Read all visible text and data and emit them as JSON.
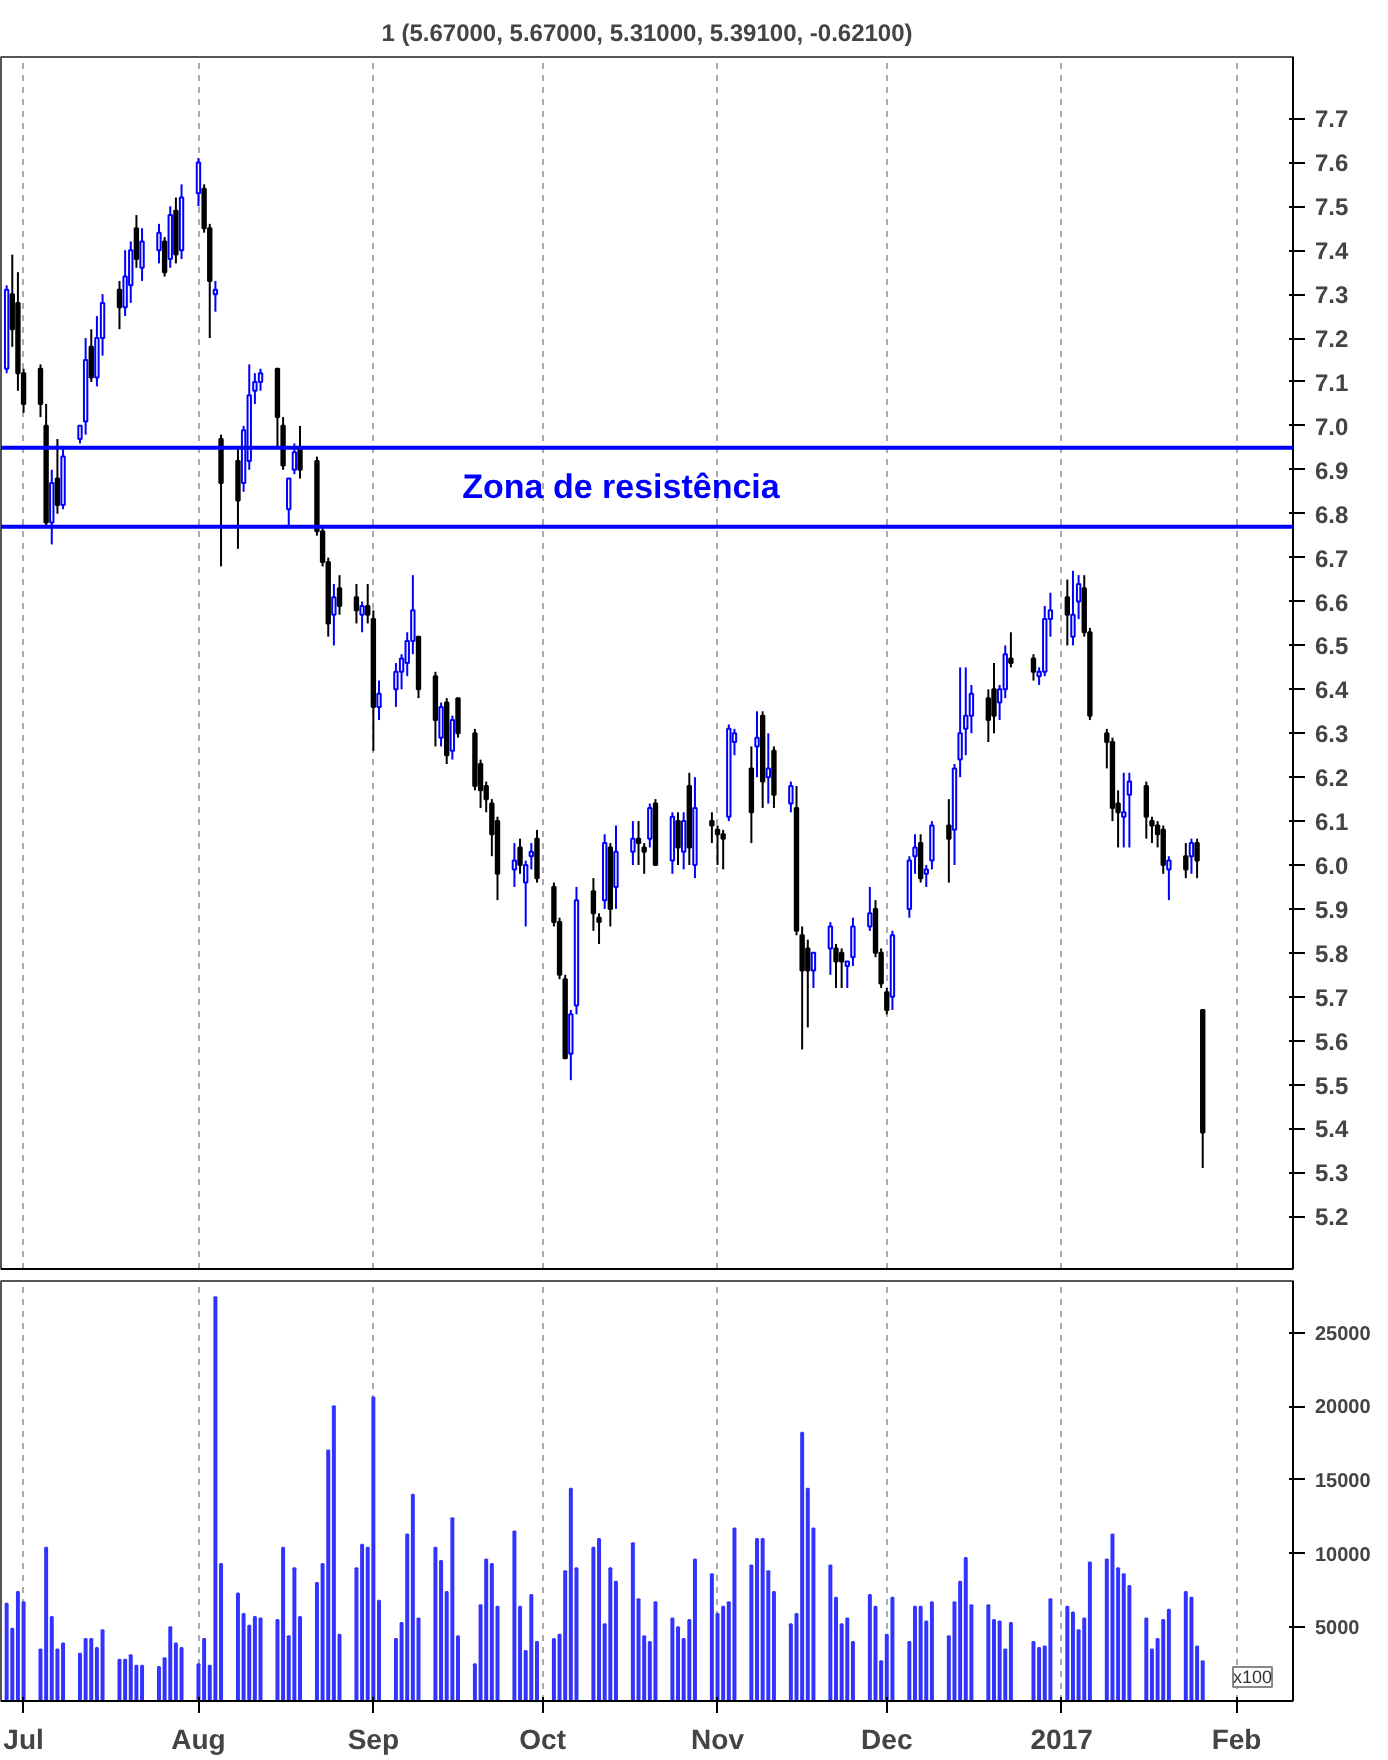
{
  "chart_data": [
    {
      "type": "candlestick",
      "title": "1 (5.67000, 5.67000, 5.31000, 5.39100, -0.62100)",
      "colors": [
        "#0000ff",
        "#000000",
        "#000000",
        "#000000",
        "#000000",
        "#000000",
        "#0000ff",
        "#000000",
        "#0000ff",
        "#0000ff",
        "#0000ff",
        "#000000",
        "#0000ff",
        "#0000ff",
        "#000000",
        "#0000ff",
        "#0000ff",
        "#000000",
        "#0000ff",
        "#0000ff",
        "#000000",
        "#0000ff",
        "#000000",
        "#0000ff",
        "#0000ff",
        "#000000",
        "#000000",
        "#0000ff",
        "#000000",
        "#000000",
        "#0000ff",
        "#0000ff",
        "#0000ff",
        "#0000ff",
        "#000000",
        "#000000",
        "#0000ff",
        "#0000ff",
        "#000000",
        "#000000",
        "#000000",
        "#000000",
        "#0000ff",
        "#000000",
        "#000000",
        "#0000ff",
        "#000000",
        "#000000",
        "#0000ff",
        "#0000ff",
        "#0000ff",
        "#0000ff",
        "#0000ff",
        "#000000",
        "#000000",
        "#0000ff",
        "#000000",
        "#0000ff",
        "#000000",
        "#000000",
        "#000000",
        "#000000",
        "#000000",
        "#000000",
        "#0000ff",
        "#000000",
        "#0000ff",
        "#0000ff",
        "#000000",
        "#000000",
        "#000000",
        "#000000",
        "#0000ff",
        "#0000ff",
        "#000000",
        "#000000",
        "#0000ff",
        "#000000",
        "#0000ff",
        "#0000ff",
        "#000000",
        "#000000",
        "#0000ff",
        "#000000",
        "#0000ff",
        "#000000",
        "#0000ff",
        "#000000",
        "#0000ff",
        "#000000",
        "#000000",
        "#000000",
        "#0000ff",
        "#0000ff",
        "#000000",
        "#0000ff",
        "#000000",
        "#0000ff",
        "#000000",
        "#0000ff",
        "#000000",
        "#000000",
        "#000000",
        "#0000ff",
        "#0000ff",
        "#000000",
        "#000000",
        "#0000ff",
        "#0000ff",
        "#0000ff",
        "#000000",
        "#000000",
        "#000000",
        "#0000ff",
        "#0000ff",
        "#0000ff",
        "#000000",
        "#0000ff",
        "#0000ff",
        "#000000",
        "#0000ff",
        "#0000ff",
        "#0000ff",
        "#0000ff",
        "#000000",
        "#000000",
        "#0000ff",
        "#0000ff",
        "#000000",
        "#000000",
        "#0000ff",
        "#0000ff",
        "#0000ff",
        "#000000",
        "#0000ff",
        "#0000ff",
        "#000000",
        "#000000",
        "#000000",
        "#000000",
        "#000000",
        "#0000ff",
        "#0000ff",
        "#000000",
        "#000000",
        "#000000",
        "#000000",
        "#0000ff",
        "#000000",
        "#0000ff",
        "#000000",
        "#000000"
      ],
      "x": [
        "2016-06-28",
        "2016-06-29",
        "2016-06-30",
        "2016-07-01",
        "2016-07-04",
        "2016-07-05",
        "2016-07-06",
        "2016-07-07",
        "2016-07-08",
        "2016-07-11",
        "2016-07-12",
        "2016-07-13",
        "2016-07-14",
        "2016-07-15",
        "2016-07-18",
        "2016-07-19",
        "2016-07-20",
        "2016-07-21",
        "2016-07-22",
        "2016-07-25",
        "2016-07-26",
        "2016-07-27",
        "2016-07-28",
        "2016-07-29",
        "2016-08-01",
        "2016-08-02",
        "2016-08-03",
        "2016-08-04",
        "2016-08-05",
        "2016-08-08",
        "2016-08-09",
        "2016-08-10",
        "2016-08-11",
        "2016-08-12",
        "2016-08-15",
        "2016-08-16",
        "2016-08-17",
        "2016-08-18",
        "2016-08-19",
        "2016-08-22",
        "2016-08-23",
        "2016-08-24",
        "2016-08-25",
        "2016-08-26",
        "2016-08-29",
        "2016-08-30",
        "2016-08-31",
        "2016-09-01",
        "2016-09-02",
        "2016-09-05",
        "2016-09-06",
        "2016-09-07",
        "2016-09-08",
        "2016-09-09",
        "2016-09-12",
        "2016-09-13",
        "2016-09-14",
        "2016-09-15",
        "2016-09-16",
        "2016-09-19",
        "2016-09-20",
        "2016-09-21",
        "2016-09-22",
        "2016-09-23",
        "2016-09-26",
        "2016-09-27",
        "2016-09-28",
        "2016-09-29",
        "2016-09-30",
        "2016-10-03",
        "2016-10-04",
        "2016-10-05",
        "2016-10-06",
        "2016-10-07",
        "2016-10-10",
        "2016-10-11",
        "2016-10-12",
        "2016-10-13",
        "2016-10-14",
        "2016-10-17",
        "2016-10-18",
        "2016-10-19",
        "2016-10-20",
        "2016-10-21",
        "2016-10-24",
        "2016-10-25",
        "2016-10-26",
        "2016-10-27",
        "2016-10-28",
        "2016-10-31",
        "2016-11-01",
        "2016-11-02",
        "2016-11-03",
        "2016-11-04",
        "2016-11-07",
        "2016-11-08",
        "2016-11-09",
        "2016-11-10",
        "2016-11-11",
        "2016-11-14",
        "2016-11-15",
        "2016-11-16",
        "2016-11-17",
        "2016-11-18",
        "2016-11-21",
        "2016-11-22",
        "2016-11-23",
        "2016-11-24",
        "2016-11-25",
        "2016-11-28",
        "2016-11-29",
        "2016-11-30",
        "2016-12-01",
        "2016-12-02",
        "2016-12-05",
        "2016-12-06",
        "2016-12-07",
        "2016-12-08",
        "2016-12-09",
        "2016-12-12",
        "2016-12-13",
        "2016-12-14",
        "2016-12-15",
        "2016-12-16",
        "2016-12-19",
        "2016-12-20",
        "2016-12-21",
        "2016-12-22",
        "2016-12-23",
        "2016-12-27",
        "2016-12-28",
        "2016-12-29",
        "2016-12-30",
        "2017-01-02",
        "2017-01-03",
        "2017-01-04",
        "2017-01-05",
        "2017-01-06",
        "2017-01-09",
        "2017-01-10",
        "2017-01-11",
        "2017-01-12",
        "2017-01-13",
        "2017-01-16",
        "2017-01-17",
        "2017-01-18",
        "2017-01-19",
        "2017-01-20",
        "2017-01-23",
        "2017-01-24",
        "2017-01-25",
        "2017-01-26"
      ],
      "ohlc": [
        [
          7.13,
          7.32,
          7.12,
          7.31
        ],
        [
          7.3,
          7.39,
          7.18,
          7.22
        ],
        [
          7.28,
          7.35,
          7.08,
          7.12
        ],
        [
          7.12,
          7.13,
          7.03,
          7.05
        ],
        [
          7.13,
          7.14,
          7.02,
          7.05
        ],
        [
          7.0,
          7.05,
          6.77,
          6.78
        ],
        [
          6.78,
          6.9,
          6.73,
          6.87
        ],
        [
          6.88,
          6.97,
          6.8,
          6.82
        ],
        [
          6.82,
          6.95,
          6.81,
          6.93
        ],
        [
          6.97,
          7.0,
          6.96,
          7.0
        ],
        [
          7.01,
          7.2,
          6.98,
          7.15
        ],
        [
          7.18,
          7.22,
          7.1,
          7.11
        ],
        [
          7.11,
          7.25,
          7.09,
          7.2
        ],
        [
          7.2,
          7.3,
          7.16,
          7.28
        ],
        [
          7.31,
          7.33,
          7.22,
          7.27
        ],
        [
          7.27,
          7.4,
          7.25,
          7.34
        ],
        [
          7.32,
          7.42,
          7.28,
          7.4
        ],
        [
          7.45,
          7.48,
          7.36,
          7.38
        ],
        [
          7.36,
          7.45,
          7.33,
          7.42
        ],
        [
          7.4,
          7.46,
          7.37,
          7.44
        ],
        [
          7.42,
          7.43,
          7.34,
          7.35
        ],
        [
          7.38,
          7.5,
          7.36,
          7.48
        ],
        [
          7.49,
          7.52,
          7.37,
          7.39
        ],
        [
          7.4,
          7.55,
          7.38,
          7.52
        ],
        [
          7.53,
          7.61,
          7.5,
          7.6
        ],
        [
          7.54,
          7.55,
          7.44,
          7.45
        ],
        [
          7.45,
          7.46,
          7.2,
          7.33
        ],
        [
          7.3,
          7.33,
          7.26,
          7.31
        ],
        [
          6.97,
          6.98,
          6.68,
          6.87
        ],
        [
          6.92,
          6.95,
          6.72,
          6.83
        ],
        [
          6.87,
          7.0,
          6.85,
          6.99
        ],
        [
          6.92,
          7.14,
          6.9,
          7.07
        ],
        [
          7.08,
          7.12,
          7.05,
          7.1
        ],
        [
          7.1,
          7.13,
          7.08,
          7.12
        ],
        [
          7.13,
          7.13,
          6.95,
          7.02
        ],
        [
          7.0,
          7.02,
          6.9,
          6.91
        ],
        [
          6.81,
          6.88,
          6.77,
          6.88
        ],
        [
          6.9,
          6.96,
          6.89,
          6.94
        ],
        [
          6.95,
          7.0,
          6.88,
          6.9
        ],
        [
          6.92,
          6.93,
          6.75,
          6.76
        ],
        [
          6.76,
          6.77,
          6.68,
          6.69
        ],
        [
          6.69,
          6.7,
          6.52,
          6.55
        ],
        [
          6.57,
          6.64,
          6.5,
          6.61
        ],
        [
          6.63,
          6.66,
          6.57,
          6.59
        ],
        [
          6.61,
          6.64,
          6.55,
          6.58
        ],
        [
          6.57,
          6.6,
          6.53,
          6.59
        ],
        [
          6.59,
          6.64,
          6.55,
          6.57
        ],
        [
          6.56,
          6.58,
          6.26,
          6.36
        ],
        [
          6.36,
          6.42,
          6.33,
          6.39
        ],
        [
          6.4,
          6.46,
          6.36,
          6.44
        ],
        [
          6.44,
          6.48,
          6.4,
          6.47
        ],
        [
          6.46,
          6.53,
          6.43,
          6.51
        ],
        [
          6.51,
          6.66,
          6.48,
          6.58
        ],
        [
          6.52,
          6.52,
          6.38,
          6.4
        ],
        [
          6.43,
          6.44,
          6.27,
          6.33
        ],
        [
          6.29,
          6.37,
          6.27,
          6.36
        ],
        [
          6.37,
          6.38,
          6.23,
          6.25
        ],
        [
          6.26,
          6.34,
          6.24,
          6.33
        ],
        [
          6.38,
          6.38,
          6.29,
          6.3
        ],
        [
          6.3,
          6.31,
          6.17,
          6.18
        ],
        [
          6.23,
          6.24,
          6.13,
          6.17
        ],
        [
          6.18,
          6.19,
          6.12,
          6.15
        ],
        [
          6.14,
          6.15,
          6.02,
          6.07
        ],
        [
          6.1,
          6.11,
          5.92,
          5.98
        ],
        [
          5.99,
          6.05,
          5.95,
          6.01
        ],
        [
          6.04,
          6.06,
          5.98,
          6.0
        ],
        [
          5.96,
          6.01,
          5.86,
          6.0
        ],
        [
          6.02,
          6.05,
          5.99,
          6.03
        ],
        [
          6.06,
          6.08,
          5.96,
          5.97
        ],
        [
          5.95,
          5.96,
          5.86,
          5.87
        ],
        [
          5.87,
          5.88,
          5.74,
          5.75
        ],
        [
          5.74,
          5.75,
          5.56,
          5.56
        ],
        [
          5.57,
          5.67,
          5.51,
          5.66
        ],
        [
          5.68,
          5.95,
          5.66,
          5.92
        ],
        [
          5.94,
          5.97,
          5.85,
          5.89
        ],
        [
          5.88,
          5.89,
          5.82,
          5.87
        ],
        [
          5.92,
          6.07,
          5.9,
          6.05
        ],
        [
          6.04,
          6.05,
          5.86,
          5.9
        ],
        [
          5.95,
          6.09,
          5.9,
          6.03
        ],
        [
          6.03,
          6.1,
          6.0,
          6.06
        ],
        [
          6.06,
          6.1,
          6.0,
          6.05
        ],
        [
          6.04,
          6.05,
          5.98,
          6.03
        ],
        [
          6.06,
          6.14,
          6.04,
          6.13
        ],
        [
          6.14,
          6.15,
          6.0,
          6.0
        ],
        [
          6.01,
          6.12,
          5.98,
          6.11
        ],
        [
          6.1,
          6.12,
          6.0,
          6.04
        ],
        [
          6.03,
          6.12,
          5.99,
          6.1
        ],
        [
          6.18,
          6.21,
          6.0,
          6.04
        ],
        [
          6.0,
          6.2,
          5.97,
          6.13
        ],
        [
          6.1,
          6.12,
          6.05,
          6.09
        ],
        [
          6.08,
          6.09,
          6.0,
          6.07
        ],
        [
          6.07,
          6.08,
          5.99,
          6.06
        ],
        [
          6.11,
          6.32,
          6.1,
          6.31
        ],
        [
          6.28,
          6.31,
          6.25,
          6.3
        ],
        [
          6.22,
          6.27,
          6.05,
          6.12
        ],
        [
          6.27,
          6.35,
          6.2,
          6.29
        ],
        [
          6.34,
          6.35,
          6.13,
          6.19
        ],
        [
          6.2,
          6.3,
          6.14,
          6.22
        ],
        [
          6.26,
          6.27,
          6.13,
          6.16
        ],
        [
          6.14,
          6.19,
          6.12,
          6.18
        ],
        [
          6.13,
          6.18,
          5.84,
          5.85
        ],
        [
          5.84,
          5.86,
          5.58,
          5.76
        ],
        [
          5.81,
          5.83,
          5.63,
          5.76
        ],
        [
          5.76,
          5.8,
          5.72,
          5.8
        ],
        [
          5.81,
          5.87,
          5.75,
          5.86
        ],
        [
          5.81,
          5.82,
          5.72,
          5.78
        ],
        [
          5.8,
          5.81,
          5.72,
          5.78
        ],
        [
          5.77,
          5.78,
          5.72,
          5.78
        ],
        [
          5.79,
          5.88,
          5.77,
          5.86
        ],
        [
          5.86,
          5.95,
          5.85,
          5.89
        ],
        [
          5.9,
          5.92,
          5.79,
          5.8
        ],
        [
          5.8,
          5.81,
          5.72,
          5.73
        ],
        [
          5.71,
          5.72,
          5.66,
          5.67
        ],
        [
          5.7,
          5.85,
          5.67,
          5.84
        ],
        [
          5.9,
          6.02,
          5.88,
          6.01
        ],
        [
          6.02,
          6.07,
          5.98,
          6.04
        ],
        [
          6.05,
          6.07,
          5.96,
          5.97
        ],
        [
          5.98,
          6.0,
          5.95,
          5.99
        ],
        [
          6.01,
          6.1,
          5.99,
          6.09
        ],
        [
          6.09,
          6.15,
          5.96,
          6.06
        ],
        [
          6.08,
          6.23,
          6.0,
          6.22
        ],
        [
          6.24,
          6.45,
          6.2,
          6.3
        ],
        [
          6.31,
          6.45,
          6.25,
          6.34
        ],
        [
          6.34,
          6.41,
          6.3,
          6.39
        ],
        [
          6.38,
          6.4,
          6.28,
          6.33
        ],
        [
          6.4,
          6.46,
          6.3,
          6.34
        ],
        [
          6.37,
          6.41,
          6.33,
          6.4
        ],
        [
          6.4,
          6.5,
          6.38,
          6.48
        ],
        [
          6.47,
          6.53,
          6.45,
          6.46
        ],
        [
          6.47,
          6.48,
          6.42,
          6.44
        ],
        [
          6.43,
          6.45,
          6.41,
          6.44
        ],
        [
          6.44,
          6.59,
          6.43,
          6.56
        ],
        [
          6.56,
          6.62,
          6.52,
          6.58
        ],
        [
          6.61,
          6.65,
          6.5,
          6.57
        ],
        [
          6.52,
          6.67,
          6.5,
          6.57
        ],
        [
          6.6,
          6.66,
          6.56,
          6.64
        ],
        [
          6.63,
          6.66,
          6.52,
          6.53
        ],
        [
          6.53,
          6.54,
          6.33,
          6.34
        ],
        [
          6.3,
          6.31,
          6.22,
          6.28
        ],
        [
          6.28,
          6.29,
          6.1,
          6.13
        ],
        [
          6.14,
          6.17,
          6.04,
          6.12
        ],
        [
          6.11,
          6.21,
          6.04,
          6.12
        ],
        [
          6.16,
          6.21,
          6.04,
          6.19
        ],
        [
          6.18,
          6.19,
          6.06,
          6.11
        ],
        [
          6.1,
          6.11,
          6.05,
          6.09
        ],
        [
          6.09,
          6.1,
          6.04,
          6.07
        ],
        [
          6.08,
          6.09,
          5.98,
          6.0
        ],
        [
          5.99,
          6.02,
          5.92,
          6.01
        ],
        [
          6.02,
          6.05,
          5.97,
          5.99
        ],
        [
          6.02,
          6.06,
          5.98,
          6.05
        ],
        [
          6.05,
          6.06,
          5.97,
          6.01
        ],
        [
          5.67,
          5.67,
          5.31,
          5.391
        ]
      ],
      "xlim": [
        "2016-06-27",
        "2017-02-11"
      ],
      "xticks": [
        {
          "value": "2016-07-01",
          "label": null
        },
        {
          "value": "2016-08-01",
          "label": null
        },
        {
          "value": "2016-09-01",
          "label": null
        },
        {
          "value": "2016-10-01",
          "label": null
        },
        {
          "value": "2016-11-01",
          "label": null
        },
        {
          "value": "2016-12-01",
          "label": null
        },
        {
          "value": "2017-01-01",
          "label": null
        },
        {
          "value": "2017-02-01",
          "label": null
        }
      ],
      "ylim": [
        5.08,
        7.84
      ],
      "yticks": [
        5.2,
        5.3,
        5.4,
        5.5,
        5.6,
        5.7,
        5.8,
        5.9,
        {
          "value": 6,
          "label": "6.0"
        },
        6.1,
        6.2,
        6.3,
        6.4,
        6.5,
        6.6,
        6.7,
        6.8,
        6.9,
        {
          "value": 7,
          "label": "7.0"
        },
        7.1,
        7.2,
        7.3,
        7.4,
        7.5,
        7.6,
        7.7
      ],
      "tick_labels": "y",
      "grid": "x",
      "ref_lines": [
        {
          "axis": "y",
          "value": 6.95,
          "color": "#0000ff"
        },
        {
          "axis": "y",
          "value": 6.77,
          "color": "#0000ff"
        }
      ],
      "annotations": [
        "Zona de resistência"
      ]
    },
    {
      "type": "bar",
      "color": "#3333ff",
      "x": [
        "2016-06-28",
        "2016-06-29",
        "2016-06-30",
        "2016-07-01",
        "2016-07-04",
        "2016-07-05",
        "2016-07-06",
        "2016-07-07",
        "2016-07-08",
        "2016-07-11",
        "2016-07-12",
        "2016-07-13",
        "2016-07-14",
        "2016-07-15",
        "2016-07-18",
        "2016-07-19",
        "2016-07-20",
        "2016-07-21",
        "2016-07-22",
        "2016-07-25",
        "2016-07-26",
        "2016-07-27",
        "2016-07-28",
        "2016-07-29",
        "2016-08-01",
        "2016-08-02",
        "2016-08-03",
        "2016-08-04",
        "2016-08-05",
        "2016-08-08",
        "2016-08-09",
        "2016-08-10",
        "2016-08-11",
        "2016-08-12",
        "2016-08-15",
        "2016-08-16",
        "2016-08-17",
        "2016-08-18",
        "2016-08-19",
        "2016-08-22",
        "2016-08-23",
        "2016-08-24",
        "2016-08-25",
        "2016-08-26",
        "2016-08-29",
        "2016-08-30",
        "2016-08-31",
        "2016-09-01",
        "2016-09-02",
        "2016-09-05",
        "2016-09-06",
        "2016-09-07",
        "2016-09-08",
        "2016-09-09",
        "2016-09-12",
        "2016-09-13",
        "2016-09-14",
        "2016-09-15",
        "2016-09-16",
        "2016-09-19",
        "2016-09-20",
        "2016-09-21",
        "2016-09-22",
        "2016-09-23",
        "2016-09-26",
        "2016-09-27",
        "2016-09-28",
        "2016-09-29",
        "2016-09-30",
        "2016-10-03",
        "2016-10-04",
        "2016-10-05",
        "2016-10-06",
        "2016-10-07",
        "2016-10-10",
        "2016-10-11",
        "2016-10-12",
        "2016-10-13",
        "2016-10-14",
        "2016-10-17",
        "2016-10-18",
        "2016-10-19",
        "2016-10-20",
        "2016-10-21",
        "2016-10-24",
        "2016-10-25",
        "2016-10-26",
        "2016-10-27",
        "2016-10-28",
        "2016-10-31",
        "2016-11-01",
        "2016-11-02",
        "2016-11-03",
        "2016-11-04",
        "2016-11-07",
        "2016-11-08",
        "2016-11-09",
        "2016-11-10",
        "2016-11-11",
        "2016-11-14",
        "2016-11-15",
        "2016-11-16",
        "2016-11-17",
        "2016-11-18",
        "2016-11-21",
        "2016-11-22",
        "2016-11-23",
        "2016-11-24",
        "2016-11-25",
        "2016-11-28",
        "2016-11-29",
        "2016-11-30",
        "2016-12-01",
        "2016-12-02",
        "2016-12-05",
        "2016-12-06",
        "2016-12-07",
        "2016-12-08",
        "2016-12-09",
        "2016-12-12",
        "2016-12-13",
        "2016-12-14",
        "2016-12-15",
        "2016-12-16",
        "2016-12-19",
        "2016-12-20",
        "2016-12-21",
        "2016-12-22",
        "2016-12-23",
        "2016-12-27",
        "2016-12-28",
        "2016-12-29",
        "2016-12-30",
        "2017-01-02",
        "2017-01-03",
        "2017-01-04",
        "2017-01-05",
        "2017-01-06",
        "2017-01-09",
        "2017-01-10",
        "2017-01-11",
        "2017-01-12",
        "2017-01-13",
        "2017-01-16",
        "2017-01-17",
        "2017-01-18",
        "2017-01-19",
        "2017-01-20",
        "2017-01-23",
        "2017-01-24",
        "2017-01-25",
        "2017-01-26"
      ],
      "values": [
        6600,
        4900,
        7400,
        6700,
        3500,
        10400,
        5700,
        3500,
        3900,
        3200,
        4200,
        4200,
        3600,
        4800,
        2800,
        2800,
        3100,
        2400,
        2400,
        2300,
        2900,
        5000,
        3900,
        3600,
        2500,
        4200,
        2400,
        27400,
        9300,
        7300,
        5900,
        5100,
        5700,
        5600,
        5500,
        10400,
        4400,
        9000,
        5700,
        8000,
        9300,
        17000,
        20000,
        4500,
        9000,
        10600,
        10400,
        20600,
        6800,
        4200,
        5300,
        11300,
        14000,
        5600,
        10400,
        9500,
        7400,
        12400,
        4400,
        2500,
        6500,
        9600,
        9300,
        6400,
        11500,
        6400,
        3400,
        7200,
        4000,
        4200,
        4500,
        8800,
        14400,
        9000,
        10400,
        11000,
        5200,
        9000,
        8100,
        10700,
        6900,
        4400,
        4000,
        6700,
        5600,
        5000,
        4200,
        5500,
        9600,
        8600,
        5900,
        6400,
        6700,
        11700,
        9200,
        11000,
        11000,
        8800,
        7400,
        5200,
        5900,
        18200,
        14400,
        11700,
        9200,
        7000,
        5200,
        5600,
        4000,
        7200,
        6400,
        2700,
        4500,
        7000,
        4000,
        6400,
        6400,
        5400,
        6700,
        4400,
        6700,
        8100,
        9700,
        6500,
        6500,
        5500,
        5400,
        3500,
        5300,
        4000,
        3600,
        3700,
        6900,
        6400,
        6000,
        4800,
        5600,
        9400,
        9600,
        11300,
        9000,
        8600,
        7800,
        5600,
        3500,
        4200,
        5500,
        6200,
        7400,
        7000,
        3700,
        2700
      ],
      "xlim": [
        "2016-06-27",
        "2017-02-11"
      ],
      "xticks": [
        {
          "value": "2016-07-01",
          "label": "Jul"
        },
        {
          "value": "2016-08-01",
          "label": "Aug"
        },
        {
          "value": "2016-09-01",
          "label": "Sep"
        },
        {
          "value": "2016-10-01",
          "label": "Oct"
        },
        {
          "value": "2016-11-01",
          "label": "Nov"
        },
        {
          "value": "2016-12-01",
          "label": "Dec"
        },
        {
          "value": "2017-01-01",
          "label": "2017"
        },
        {
          "value": "2017-02-01",
          "label": "Feb"
        }
      ],
      "ylim": [
        0,
        28500
      ],
      "yticks": [
        5000,
        10000,
        15000,
        20000,
        25000
      ],
      "grid": "x",
      "annotations": [
        "x100"
      ]
    }
  ]
}
